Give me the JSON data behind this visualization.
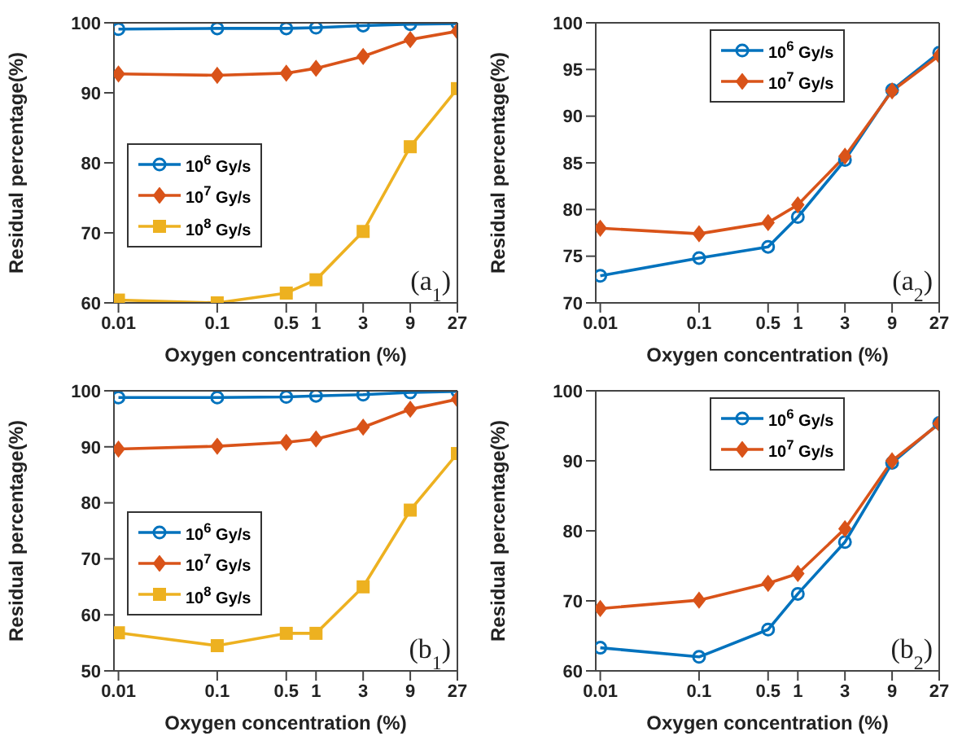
{
  "chart_data": [
    {
      "type": "line",
      "xlabel": "Oxygen concentration (%)",
      "ylabel": "Residual percentage(%)",
      "log": "x",
      "x": [
        0.01,
        0.1,
        0.5,
        1,
        3,
        9,
        27
      ],
      "xlim": [
        0.009,
        27
      ],
      "xticks": [
        0.01,
        0.1,
        0.5,
        1,
        3,
        9,
        27
      ],
      "ylim": [
        60,
        100
      ],
      "yticks": [
        60,
        70,
        80,
        90,
        100
      ],
      "legend": "left",
      "annotations": [
        "(a$_{1}$)"
      ],
      "series": [
        {
          "name": "10$^{6}$ Gy/s",
          "color": "#0072bd",
          "marker": "circle",
          "values": [
            99.1,
            99.2,
            99.2,
            99.3,
            99.6,
            99.8,
            99.9
          ]
        },
        {
          "name": "10$^{7}$ Gy/s",
          "color": "#d95319",
          "marker": "diamond",
          "values": [
            92.7,
            92.5,
            92.8,
            93.5,
            95.2,
            97.6,
            98.8
          ]
        },
        {
          "name": "10$^{8}$ Gy/s",
          "color": "#edb120",
          "marker": "square",
          "values": [
            60.4,
            60.0,
            61.4,
            63.3,
            70.2,
            82.3,
            90.6
          ]
        }
      ]
    },
    {
      "type": "line",
      "xlabel": "Oxygen concentration (%)",
      "ylabel": "Residual percentage(%)",
      "log": "x",
      "x": [
        0.01,
        0.1,
        0.5,
        1,
        3,
        9,
        27
      ],
      "xlim": [
        0.009,
        27
      ],
      "xticks": [
        0.01,
        0.1,
        0.5,
        1,
        3,
        9,
        27
      ],
      "ylim": [
        70,
        100
      ],
      "yticks": [
        70,
        75,
        80,
        85,
        90,
        95,
        100
      ],
      "legend": "top",
      "annotations": [
        "(a$_{2}$)"
      ],
      "series": [
        {
          "name": "10$^{6}$ Gy/s",
          "color": "#0072bd",
          "marker": "circle",
          "values": [
            72.9,
            74.8,
            76.0,
            79.2,
            85.3,
            92.8,
            96.8
          ]
        },
        {
          "name": "10$^{7}$ Gy/s",
          "color": "#d95319",
          "marker": "diamond",
          "values": [
            78.0,
            77.4,
            78.6,
            80.5,
            85.7,
            92.7,
            96.5
          ]
        }
      ]
    },
    {
      "type": "line",
      "xlabel": "Oxygen concentration (%)",
      "ylabel": "Residual percentage(%)",
      "log": "x",
      "x": [
        0.01,
        0.1,
        0.5,
        1,
        3,
        9,
        27
      ],
      "xlim": [
        0.009,
        27
      ],
      "xticks": [
        0.01,
        0.1,
        0.5,
        1,
        3,
        9,
        27
      ],
      "ylim": [
        50,
        100
      ],
      "yticks": [
        50,
        60,
        70,
        80,
        90,
        100
      ],
      "legend": "left",
      "annotations": [
        "(b$_{1}$)"
      ],
      "series": [
        {
          "name": "10$^{6}$ Gy/s",
          "color": "#0072bd",
          "marker": "circle",
          "values": [
            98.8,
            98.8,
            98.9,
            99.1,
            99.3,
            99.7,
            99.9
          ]
        },
        {
          "name": "10$^{7}$ Gy/s",
          "color": "#d95319",
          "marker": "diamond",
          "values": [
            89.6,
            90.1,
            90.8,
            91.4,
            93.5,
            96.7,
            98.5
          ]
        },
        {
          "name": "10$^{8}$ Gy/s",
          "color": "#edb120",
          "marker": "square",
          "values": [
            56.8,
            54.5,
            56.7,
            56.7,
            65.0,
            78.7,
            88.8
          ]
        }
      ]
    },
    {
      "type": "line",
      "xlabel": "Oxygen concentration (%)",
      "ylabel": "Residual percentage(%)",
      "log": "x",
      "x": [
        0.01,
        0.1,
        0.5,
        1,
        3,
        9,
        27
      ],
      "xlim": [
        0.009,
        27
      ],
      "xticks": [
        0.01,
        0.1,
        0.5,
        1,
        3,
        9,
        27
      ],
      "ylim": [
        60,
        100
      ],
      "yticks": [
        60,
        70,
        80,
        90,
        100
      ],
      "legend": "top",
      "annotations": [
        "(b$_{2}$)"
      ],
      "series": [
        {
          "name": "10$^{6}$ Gy/s",
          "color": "#0072bd",
          "marker": "circle",
          "values": [
            63.3,
            62.0,
            65.9,
            71.0,
            78.4,
            89.7,
            95.4
          ]
        },
        {
          "name": "10$^{7}$ Gy/s",
          "color": "#d95319",
          "marker": "diamond",
          "values": [
            68.9,
            70.1,
            72.5,
            73.9,
            80.3,
            90.0,
            95.3
          ]
        }
      ]
    }
  ]
}
